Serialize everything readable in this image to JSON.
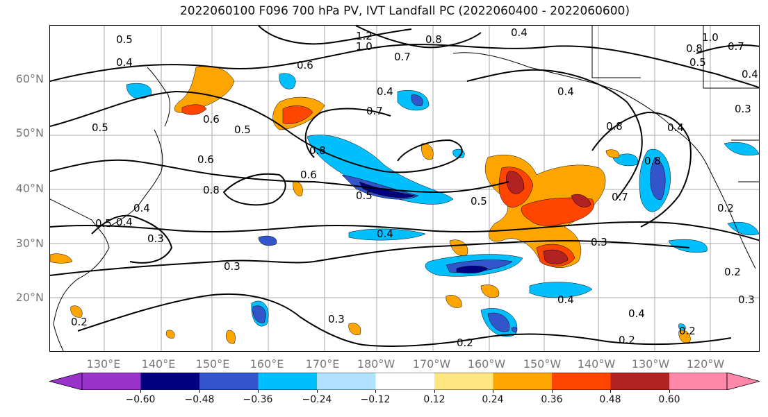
{
  "title": "2022060100 F096 700 hPa PV, IVT Landfall PC (2022060400 - 2022060600)",
  "lat_labels": [
    "60°N",
    "50°N",
    "40°N",
    "30°N",
    "20°N"
  ],
  "lon_labels": [
    "130°E",
    "140°E",
    "150°E",
    "160°E",
    "170°E",
    "180°W",
    "170°W",
    "160°W",
    "150°W",
    "140°W",
    "130°W",
    "120°W"
  ],
  "colorbar": {
    "ticks": [
      "−0.60",
      "−0.48",
      "−0.36",
      "−0.24",
      "−0.12",
      "0.12",
      "0.24",
      "0.36",
      "0.48",
      "0.60"
    ],
    "colors": [
      "#9933cc",
      "#000080",
      "#3355cc",
      "#00bfff",
      "#b0e2ff",
      "#ffffff",
      "#ffe680",
      "#ffa500",
      "#ff4500",
      "#b22222",
      "#ff88aa"
    ]
  },
  "contour_labels": [
    "0.5",
    "0.4",
    "1.2",
    "1.0",
    "0.7",
    "0.8",
    "0.4",
    "0.6",
    "1.0",
    "0.8",
    "0.7",
    "0.5",
    "0.4",
    "0.3",
    "0.5",
    "0.6",
    "0.4",
    "0.7",
    "0.4",
    "0.5",
    "0.8",
    "0.8",
    "0.4",
    "0.6",
    "0.6",
    "0.8",
    "0.5",
    "0.5",
    "0.7",
    "0.8",
    "0.4",
    "0.4",
    "0.5",
    "0.3",
    "0.4",
    "0.3",
    "0.2",
    "0.3",
    "0.3",
    "0.2",
    "0.4",
    "0.4",
    "0.2",
    "0.2",
    "0.2",
    "0.3",
    "0.2"
  ]
}
